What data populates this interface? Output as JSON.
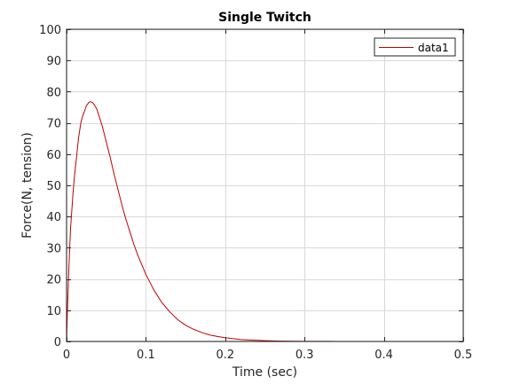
{
  "chart_data": {
    "type": "line",
    "title": "Single Twitch",
    "xlabel": "Time (sec)",
    "ylabel": "Force(N, tension)",
    "xlim": [
      0,
      0.5
    ],
    "ylim": [
      0,
      100
    ],
    "xticks": [
      0,
      0.1,
      0.2,
      0.3,
      0.4,
      0.5
    ],
    "xtick_labels": [
      "0",
      "0.1",
      "0.2",
      "0.3",
      "0.4",
      "0.5"
    ],
    "yticks": [
      0,
      10,
      20,
      30,
      40,
      50,
      60,
      70,
      80,
      90,
      100
    ],
    "ytick_labels": [
      "0",
      "10",
      "20",
      "30",
      "40",
      "50",
      "60",
      "70",
      "80",
      "90",
      "100"
    ],
    "grid": true,
    "legend_position": "top-right",
    "series": [
      {
        "name": "data1",
        "color": "#C00000",
        "x": [
          0,
          0.001,
          0.003,
          0.005,
          0.008,
          0.01,
          0.013,
          0.015,
          0.018,
          0.02,
          0.023,
          0.025,
          0.028,
          0.03,
          0.033,
          0.035,
          0.038,
          0.04,
          0.045,
          0.05,
          0.055,
          0.06,
          0.065,
          0.07,
          0.075,
          0.08,
          0.085,
          0.09,
          0.095,
          0.1,
          0.11,
          0.12,
          0.13,
          0.14,
          0.15,
          0.16,
          0.17,
          0.18,
          0.19,
          0.2,
          0.21,
          0.22,
          0.23,
          0.24,
          0.25,
          0.27,
          0.3,
          0.33,
          0.36,
          0.4,
          0.45,
          0.5
        ],
        "y": [
          0,
          9,
          24,
          36,
          47,
          53,
          60,
          65,
          70,
          72,
          74,
          75.5,
          76.5,
          76.8,
          76.5,
          75.8,
          74.5,
          73,
          69,
          64,
          59,
          53.5,
          48.5,
          43.5,
          39,
          35,
          31,
          27.5,
          24.5,
          21.5,
          16.5,
          12.5,
          9.5,
          7,
          5.2,
          3.9,
          2.9,
          2.1,
          1.6,
          1.2,
          0.9,
          0.6,
          0.45,
          0.35,
          0.25,
          0.12,
          0.05,
          0.02,
          0.01,
          0,
          0,
          0
        ]
      }
    ]
  }
}
